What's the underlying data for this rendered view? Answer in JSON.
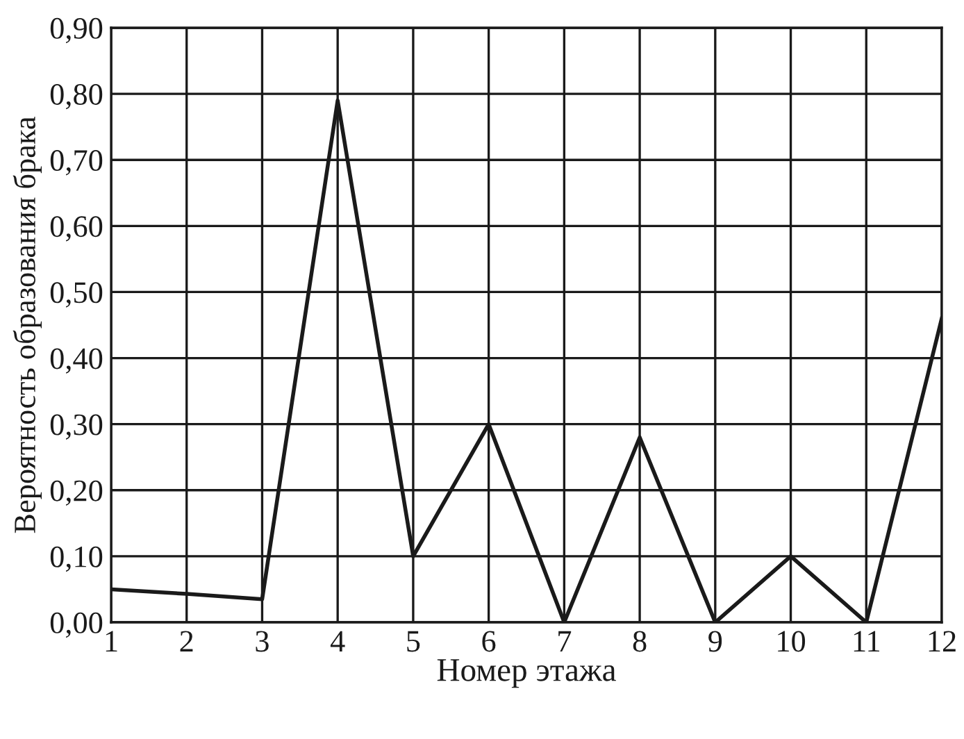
{
  "chart_data": {
    "type": "line",
    "xlabel": "Номер этажа",
    "ylabel": "Вероятность образования брака",
    "x": [
      1,
      2,
      3,
      4,
      5,
      6,
      7,
      8,
      9,
      10,
      11,
      12
    ],
    "values": [
      0.05,
      0.043,
      0.035,
      0.79,
      0.1,
      0.3,
      0.0,
      0.28,
      0.0,
      0.1,
      0.0,
      0.46
    ],
    "color": "#1a1a1a",
    "xlim": [
      1,
      12
    ],
    "xticks": [
      1,
      2,
      3,
      4,
      5,
      6,
      7,
      8,
      9,
      10,
      11,
      12
    ],
    "ylim": [
      0,
      0.9
    ],
    "yticks": [
      {
        "value": 0,
        "label": "0,00"
      },
      {
        "value": 0.1,
        "label": "0,10"
      },
      {
        "value": 0.2,
        "label": "0,20"
      },
      {
        "value": 0.3,
        "label": "0,30"
      },
      {
        "value": 0.4,
        "label": "0,40"
      },
      {
        "value": 0.5,
        "label": "0,50"
      },
      {
        "value": 0.6,
        "label": "0,60"
      },
      {
        "value": 0.7,
        "label": "0,70"
      },
      {
        "value": 0.8,
        "label": "0,80"
      },
      {
        "value": 0.9,
        "label": "0,90"
      }
    ],
    "grid": true,
    "marker": "none",
    "line_style": "solid"
  }
}
